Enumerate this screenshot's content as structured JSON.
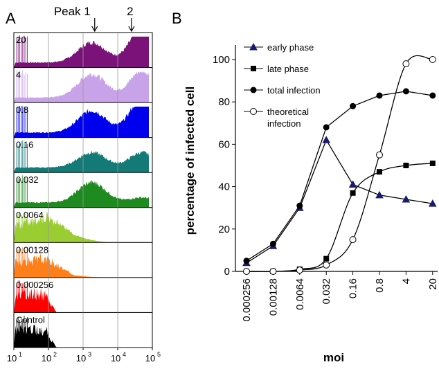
{
  "panels": [
    {
      "letter": "A",
      "chart_data": {
        "type": "histogram",
        "peak_labels": [
          "Peak 1",
          "2"
        ],
        "x_tick_labels": [
          [
            "10",
            "1"
          ],
          [
            "10",
            "2"
          ],
          [
            "10",
            "3"
          ],
          [
            "10",
            "4"
          ],
          [
            "10",
            "5"
          ]
        ],
        "x_scale": "log",
        "xlim": [
          10,
          100000
        ],
        "gridlines_at": [
          100,
          1000,
          10000
        ],
        "peak_positions": [
          1800,
          25000
        ],
        "series": [
          {
            "moi": "20",
            "color": "#7b127a",
            "p1": 0.6,
            "p2": 1.0
          },
          {
            "moi": "4",
            "color": "#c9a3ea",
            "p1": 0.7,
            "p2": 0.8
          },
          {
            "moi": "0.8",
            "color": "#0000ee",
            "p1": 0.65,
            "p2": 1.0
          },
          {
            "moi": "0.16",
            "color": "#137a78",
            "p1": 0.45,
            "p2": 0.45
          },
          {
            "moi": "0.032",
            "color": "#1f8a1f",
            "p1": 0.6,
            "p2": 0.15
          },
          {
            "moi": "0.0064",
            "color": "#9acd32",
            "p1": 0.35,
            "p2": 0.0
          },
          {
            "moi": "0.00128",
            "color": "#ff7f1a",
            "p1": 0.1,
            "p2": 0.0
          },
          {
            "moi": "0.000256",
            "color": "#ff0000",
            "p1": 0.0,
            "p2": 0.0
          },
          {
            "moi": "Control",
            "color": "#000000",
            "p1": 0.0,
            "p2": 0.0
          }
        ]
      }
    },
    {
      "letter": "B",
      "chart_data": {
        "type": "line",
        "categories": [
          "0.000256",
          "0.00128",
          "0.0064",
          "0.032",
          "0.16",
          "0.8",
          "4",
          "20"
        ],
        "xlabel": "moi",
        "ylabel": "percentage of infected cell",
        "ylim": [
          0,
          100
        ],
        "yticks": [
          0,
          20,
          40,
          60,
          80,
          100
        ],
        "legend_position": "top-left",
        "series": [
          {
            "name": "early phase",
            "marker": "triangle",
            "values": [
              4,
              12,
              30,
              62,
              41,
              36,
              34,
              32
            ]
          },
          {
            "name": "late phase",
            "marker": "square",
            "values": [
              0,
              0,
              1,
              6,
              37,
              47,
              50,
              51
            ]
          },
          {
            "name": "total infection",
            "marker": "circle-filled",
            "values": [
              5,
              13,
              31,
              68,
              78,
              83,
              85,
              83
            ]
          },
          {
            "name": "theoretical\ninfection",
            "marker": "circle-open",
            "values": [
              0,
              0,
              0.6,
              3,
              15,
              55,
              98,
              100
            ]
          }
        ]
      }
    }
  ]
}
